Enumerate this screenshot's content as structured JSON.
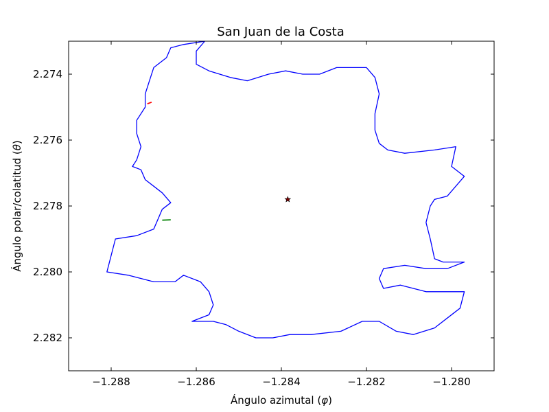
{
  "chart_data": {
    "type": "line",
    "title": "San Juan de la Costa",
    "xlabel_text": "Ángulo azimutal (",
    "xlabel_symbol": "φ",
    "xlabel_close": ")",
    "ylabel_text": "Ángulo polar/colatitud (",
    "ylabel_symbol": "θ",
    "ylabel_close": ")",
    "xlim": [
      -1.289,
      -1.279
    ],
    "ylim": [
      2.283,
      2.273
    ],
    "y_inverted": true,
    "grid": false,
    "xticks": [
      -1.288,
      -1.286,
      -1.284,
      -1.282,
      -1.28
    ],
    "xtick_labels": [
      "−1.288",
      "−1.286",
      "−1.284",
      "−1.282",
      "−1.280"
    ],
    "yticks": [
      2.274,
      2.276,
      2.278,
      2.28,
      2.282
    ],
    "ytick_labels": [
      "2.274",
      "2.276",
      "2.278",
      "2.280",
      "2.282"
    ],
    "colors": {
      "outline": "#0000ff",
      "red_segment": "#ff0000",
      "green_segment": "#008000",
      "center_fill": "#800000"
    },
    "series": [
      {
        "kind": "outline",
        "points": [
          [
            -1.2858,
            2.273
          ],
          [
            -1.2863,
            2.2731
          ],
          [
            -1.2866,
            2.2732
          ],
          [
            -1.2867,
            2.2735
          ],
          [
            -1.287,
            2.2738
          ],
          [
            -1.2871,
            2.2742
          ],
          [
            -1.2872,
            2.2746
          ],
          [
            -1.2872,
            2.275
          ],
          [
            -1.2874,
            2.2754
          ],
          [
            -1.2874,
            2.2758
          ],
          [
            -1.2873,
            2.2762
          ],
          [
            -1.2874,
            2.2766
          ],
          [
            -1.2875,
            2.2768
          ],
          [
            -1.2873,
            2.2769
          ],
          [
            -1.2872,
            2.2772
          ],
          [
            -1.287,
            2.2774
          ],
          [
            -1.2868,
            2.2776
          ],
          [
            -1.2866,
            2.2779
          ],
          [
            -1.2868,
            2.2781
          ],
          [
            -1.2869,
            2.2784
          ],
          [
            -1.287,
            2.2787
          ],
          [
            -1.2874,
            2.2789
          ],
          [
            -1.2879,
            2.279
          ],
          [
            -1.2881,
            2.28
          ],
          [
            -1.2876,
            2.2801
          ],
          [
            -1.287,
            2.2803
          ],
          [
            -1.2865,
            2.2803
          ],
          [
            -1.2863,
            2.2801
          ],
          [
            -1.2859,
            2.2803
          ],
          [
            -1.2857,
            2.2806
          ],
          [
            -1.2856,
            2.281
          ],
          [
            -1.2857,
            2.2813
          ],
          [
            -1.2861,
            2.2815
          ],
          [
            -1.2856,
            2.2815
          ],
          [
            -1.2853,
            2.2816
          ],
          [
            -1.285,
            2.2818
          ],
          [
            -1.2846,
            2.282
          ],
          [
            -1.2842,
            2.282
          ],
          [
            -1.2838,
            2.2819
          ],
          [
            -1.2833,
            2.2819
          ],
          [
            -1.2826,
            2.2818
          ],
          [
            -1.2821,
            2.2815
          ],
          [
            -1.2817,
            2.2815
          ],
          [
            -1.2813,
            2.2818
          ],
          [
            -1.2809,
            2.2819
          ],
          [
            -1.2804,
            2.2817
          ],
          [
            -1.2801,
            2.2814
          ],
          [
            -1.2798,
            2.2811
          ],
          [
            -1.2797,
            2.2806
          ],
          [
            -1.28,
            2.2806
          ],
          [
            -1.2806,
            2.2806
          ],
          [
            -1.2812,
            2.2804
          ],
          [
            -1.2816,
            2.2805
          ],
          [
            -1.2817,
            2.2802
          ],
          [
            -1.2816,
            2.2799
          ],
          [
            -1.2811,
            2.2798
          ],
          [
            -1.2806,
            2.2799
          ],
          [
            -1.2801,
            2.2799
          ],
          [
            -1.2797,
            2.2797
          ],
          [
            -1.2802,
            2.2797
          ],
          [
            -1.2804,
            2.2796
          ],
          [
            -1.2805,
            2.279
          ],
          [
            -1.2806,
            2.2785
          ],
          [
            -1.2805,
            2.278
          ],
          [
            -1.2804,
            2.2778
          ],
          [
            -1.2801,
            2.2777
          ],
          [
            -1.2799,
            2.2774
          ],
          [
            -1.2797,
            2.2771
          ],
          [
            -1.28,
            2.2768
          ],
          [
            -1.2799,
            2.2762
          ],
          [
            -1.2804,
            2.2763
          ],
          [
            -1.2811,
            2.2764
          ],
          [
            -1.2815,
            2.2763
          ],
          [
            -1.2817,
            2.2761
          ],
          [
            -1.2818,
            2.2757
          ],
          [
            -1.2818,
            2.2752
          ],
          [
            -1.2817,
            2.2746
          ],
          [
            -1.2818,
            2.2741
          ],
          [
            -1.282,
            2.2738
          ],
          [
            -1.2823,
            2.2738
          ],
          [
            -1.2827,
            2.2738
          ],
          [
            -1.2831,
            2.274
          ],
          [
            -1.2835,
            2.274
          ],
          [
            -1.2839,
            2.2739
          ],
          [
            -1.2843,
            2.274
          ],
          [
            -1.2848,
            2.2742
          ],
          [
            -1.2852,
            2.2741
          ],
          [
            -1.2857,
            2.2739
          ],
          [
            -1.286,
            2.2737
          ],
          [
            -1.286,
            2.2733
          ],
          [
            -1.2858,
            2.273
          ]
        ]
      },
      {
        "kind": "segment-red",
        "points": [
          [
            -1.28715,
            2.2749
          ],
          [
            -1.28705,
            2.27485
          ]
        ]
      },
      {
        "kind": "segment-green",
        "points": [
          [
            -1.2868,
            2.27843
          ],
          [
            -1.2866,
            2.27842
          ]
        ]
      }
    ],
    "center_marker": {
      "x": -1.28385,
      "y": 2.2778,
      "shape": "star"
    }
  }
}
